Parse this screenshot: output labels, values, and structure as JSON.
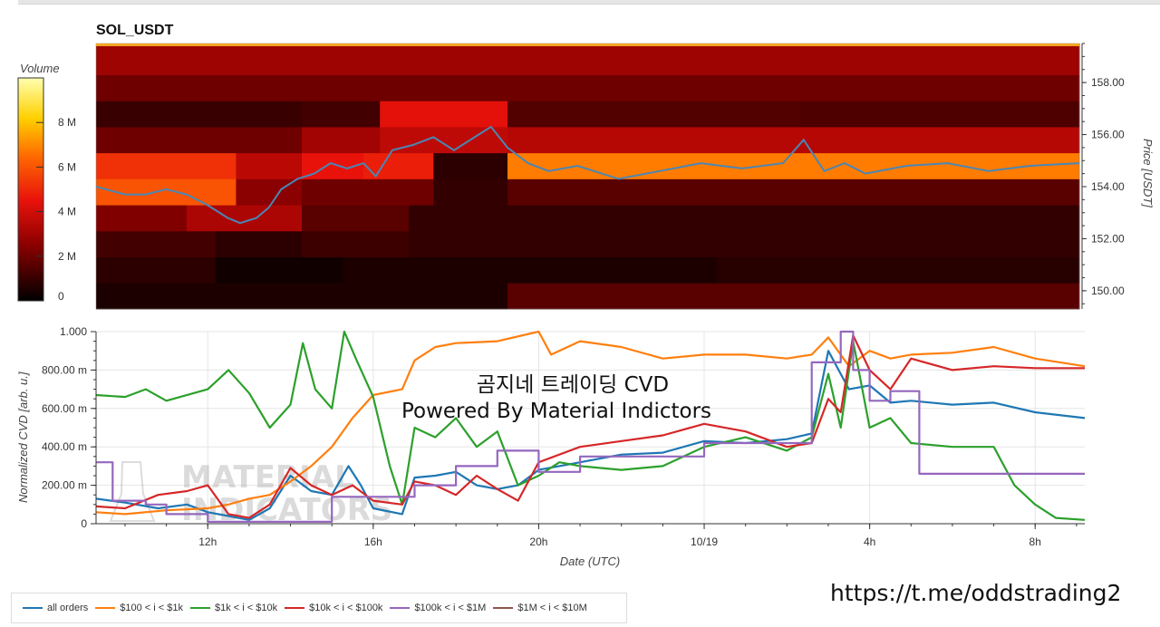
{
  "url": "https://t.me/oddstrading2",
  "chart_data": [
    {
      "type": "heatmap",
      "title": "SOL_USDT",
      "colorbar_label": "Volume",
      "colorbar_range": [
        0,
        10
      ],
      "colorbar_ticks": [
        {
          "value": 0,
          "label": "0"
        },
        {
          "value": 2,
          "label": "2 M"
        },
        {
          "value": 4,
          "label": "4 M"
        },
        {
          "value": 6,
          "label": "6 M"
        },
        {
          "value": 8,
          "label": "8 M"
        }
      ],
      "ylabel": "Price [USDT]",
      "ylim": [
        149.3,
        159.5
      ],
      "y_ticks": [
        {
          "value": 150,
          "label": "150.00"
        },
        {
          "value": 152,
          "label": "152.00"
        },
        {
          "value": 154,
          "label": "154.00"
        },
        {
          "value": 156,
          "label": "156.00"
        },
        {
          "value": 158,
          "label": "158.00"
        }
      ],
      "x_hours_range": [
        9.3,
        33.2
      ],
      "price_bins": [
        {
          "lo": 149.3,
          "hi": 150.3
        },
        {
          "lo": 150.3,
          "hi": 151.3
        },
        {
          "lo": 151.3,
          "hi": 152.3
        },
        {
          "lo": 152.3,
          "hi": 153.3
        },
        {
          "lo": 153.3,
          "hi": 154.3
        },
        {
          "lo": 154.3,
          "hi": 155.3
        },
        {
          "lo": 155.3,
          "hi": 156.3
        },
        {
          "lo": 156.3,
          "hi": 157.3
        },
        {
          "lo": 157.3,
          "hi": 158.3
        },
        {
          "lo": 158.3,
          "hi": 159.5
        }
      ],
      "volume_segments": [
        [
          [
            9.3,
            19.3,
            0.5
          ],
          [
            19.3,
            33.2,
            1.6
          ]
        ],
        [
          [
            9.3,
            12.2,
            0.8
          ],
          [
            12.2,
            15.3,
            0.3
          ],
          [
            15.3,
            24.4,
            0.5
          ],
          [
            24.4,
            33.2,
            0.7
          ]
        ],
        [
          [
            9.3,
            12.2,
            1.2
          ],
          [
            12.2,
            14.3,
            0.8
          ],
          [
            14.3,
            16.9,
            1.1
          ],
          [
            16.9,
            33.2,
            0.9
          ]
        ],
        [
          [
            9.3,
            11.5,
            2.3
          ],
          [
            11.5,
            14.3,
            3.2
          ],
          [
            14.3,
            16.9,
            1.6
          ],
          [
            16.9,
            33.2,
            0.9
          ]
        ],
        [
          [
            9.3,
            12.7,
            6.0
          ],
          [
            12.7,
            14.3,
            2.5
          ],
          [
            14.3,
            17.5,
            2.0
          ],
          [
            17.5,
            19.3,
            0.9
          ],
          [
            19.3,
            33.2,
            1.6
          ]
        ],
        [
          [
            9.3,
            12.7,
            5.2
          ],
          [
            12.7,
            14.3,
            3.5
          ],
          [
            14.3,
            15.8,
            4.5
          ],
          [
            15.8,
            17.5,
            4.8
          ],
          [
            17.5,
            19.3,
            0.8
          ],
          [
            19.3,
            33.2,
            6.8
          ]
        ],
        [
          [
            9.3,
            14.3,
            2.0
          ],
          [
            14.3,
            16.2,
            3.0
          ],
          [
            16.2,
            19.3,
            3.6
          ],
          [
            19.3,
            33.2,
            3.4
          ]
        ],
        [
          [
            9.3,
            14.3,
            1.0
          ],
          [
            14.3,
            16.2,
            1.2
          ],
          [
            16.2,
            19.3,
            4.4
          ],
          [
            19.3,
            26.4,
            1.5
          ],
          [
            26.4,
            33.2,
            1.4
          ]
        ],
        [
          [
            9.3,
            33.2,
            2.0
          ]
        ],
        [
          [
            9.3,
            33.2,
            2.9
          ]
        ]
      ],
      "price_line": {
        "color": "#4a86b4",
        "x_hours": [
          9.3,
          10.0,
          10.5,
          11.0,
          11.5,
          12.0,
          12.5,
          12.8,
          13.2,
          13.5,
          13.8,
          14.2,
          14.6,
          15.0,
          15.4,
          15.8,
          16.1,
          16.5,
          17.0,
          17.5,
          18.0,
          18.5,
          18.9,
          19.3,
          19.8,
          20.3,
          21.0,
          22.0,
          23.0,
          24.0,
          25.0,
          26.0,
          26.5,
          27.0,
          27.5,
          28.0,
          29.0,
          30.0,
          31.0,
          32.0,
          33.2
        ],
        "y": [
          154.0,
          153.7,
          153.7,
          153.9,
          153.7,
          153.3,
          152.8,
          152.6,
          152.8,
          153.2,
          153.9,
          154.3,
          154.5,
          154.9,
          154.7,
          154.9,
          154.4,
          155.4,
          155.6,
          155.9,
          155.4,
          155.9,
          156.3,
          155.5,
          154.9,
          154.6,
          154.8,
          154.3,
          154.6,
          154.9,
          154.7,
          154.9,
          155.8,
          154.6,
          154.9,
          154.5,
          154.8,
          154.9,
          154.6,
          154.8,
          154.9
        ]
      }
    },
    {
      "type": "line",
      "xlabel": "Date (UTC)",
      "ylabel": "Normalized CVD [arb. u.]",
      "ylim": [
        0,
        1.0
      ],
      "y_ticks": [
        {
          "value": 0,
          "label": "0"
        },
        {
          "value": 0.2,
          "label": "200.00 m"
        },
        {
          "value": 0.4,
          "label": "400.00 m"
        },
        {
          "value": 0.6,
          "label": "600.00 m"
        },
        {
          "value": 0.8,
          "label": "800.00 m"
        },
        {
          "value": 1.0,
          "label": "1.000"
        }
      ],
      "x_hours_range": [
        9.3,
        33.2
      ],
      "x_ticks": [
        {
          "value": 12,
          "label": "12h"
        },
        {
          "value": 16,
          "label": "16h"
        },
        {
          "value": 20,
          "label": "20h"
        },
        {
          "value": 24,
          "label": "10/19"
        },
        {
          "value": 28,
          "label": "4h"
        },
        {
          "value": 32,
          "label": "8h"
        }
      ],
      "watermark_lines": [
        "곰지네 트레이딩 CVD",
        "Powered By Material Indictors"
      ],
      "logo_watermark": [
        "MATERIAL",
        "INDICATORS"
      ],
      "series": [
        {
          "name": "all orders",
          "color": "#1f77b4",
          "x_hours": [
            9.3,
            10.0,
            10.8,
            11.5,
            12.0,
            12.5,
            13.0,
            13.5,
            14.0,
            14.5,
            15.0,
            15.4,
            15.7,
            16.0,
            16.7,
            17.0,
            17.5,
            18.0,
            18.5,
            19.0,
            19.5,
            20.0,
            21.0,
            22.0,
            23.0,
            24.0,
            25.0,
            26.0,
            26.6,
            27.0,
            27.5,
            28.0,
            28.5,
            29.0,
            30.0,
            31.0,
            32.0,
            33.2
          ],
          "y": [
            0.13,
            0.11,
            0.08,
            0.1,
            0.06,
            0.04,
            0.02,
            0.08,
            0.25,
            0.17,
            0.15,
            0.3,
            0.2,
            0.08,
            0.05,
            0.24,
            0.25,
            0.27,
            0.2,
            0.18,
            0.2,
            0.28,
            0.32,
            0.36,
            0.37,
            0.43,
            0.42,
            0.44,
            0.47,
            0.9,
            0.7,
            0.72,
            0.63,
            0.64,
            0.62,
            0.63,
            0.58,
            0.55
          ]
        },
        {
          "name": "$100 < i < $1k",
          "color": "#ff7f0e",
          "x_hours": [
            9.3,
            10.0,
            11.0,
            12.0,
            12.5,
            13.0,
            13.5,
            14.0,
            14.5,
            15.0,
            15.5,
            16.0,
            16.7,
            17.0,
            17.5,
            18.0,
            19.0,
            20.0,
            20.3,
            21.0,
            22.0,
            23.0,
            24.0,
            25.0,
            26.0,
            26.6,
            27.0,
            27.5,
            28.0,
            28.5,
            29.0,
            30.0,
            31.0,
            32.0,
            33.2
          ],
          "y": [
            0.06,
            0.05,
            0.07,
            0.08,
            0.1,
            0.13,
            0.15,
            0.22,
            0.3,
            0.4,
            0.55,
            0.67,
            0.7,
            0.85,
            0.92,
            0.94,
            0.95,
            1.0,
            0.88,
            0.95,
            0.92,
            0.86,
            0.88,
            0.88,
            0.86,
            0.88,
            0.97,
            0.82,
            0.9,
            0.86,
            0.88,
            0.89,
            0.92,
            0.86,
            0.82
          ]
        },
        {
          "name": "$1k < i < $10k",
          "color": "#2ca02c",
          "x_hours": [
            9.3,
            10.0,
            10.5,
            11.0,
            12.0,
            12.5,
            13.0,
            13.5,
            14.0,
            14.3,
            14.6,
            15.0,
            15.3,
            15.6,
            16.0,
            16.4,
            16.7,
            17.0,
            17.5,
            18.0,
            18.5,
            19.0,
            19.5,
            20.0,
            20.5,
            21.0,
            22.0,
            23.0,
            24.0,
            25.0,
            26.0,
            26.6,
            27.0,
            27.3,
            27.6,
            28.0,
            28.5,
            29.0,
            30.0,
            31.0,
            31.5,
            32.0,
            32.5,
            33.2
          ],
          "y": [
            0.67,
            0.66,
            0.7,
            0.64,
            0.7,
            0.8,
            0.68,
            0.5,
            0.62,
            0.94,
            0.7,
            0.6,
            1.0,
            0.85,
            0.66,
            0.3,
            0.1,
            0.5,
            0.45,
            0.55,
            0.4,
            0.48,
            0.2,
            0.25,
            0.32,
            0.3,
            0.28,
            0.3,
            0.4,
            0.45,
            0.38,
            0.45,
            0.78,
            0.5,
            0.95,
            0.5,
            0.55,
            0.42,
            0.4,
            0.4,
            0.2,
            0.1,
            0.03,
            0.02
          ]
        },
        {
          "name": "$10k < i < $100k",
          "color": "#d62728",
          "x_hours": [
            9.3,
            10.0,
            10.8,
            11.5,
            12.0,
            12.5,
            13.0,
            13.5,
            14.0,
            14.5,
            15.0,
            15.5,
            16.0,
            16.7,
            17.0,
            17.5,
            18.0,
            18.5,
            19.0,
            19.5,
            20.0,
            21.0,
            22.0,
            23.0,
            24.0,
            25.0,
            26.0,
            26.6,
            27.0,
            27.3,
            27.6,
            28.0,
            28.5,
            29.0,
            30.0,
            31.0,
            32.0,
            33.2
          ],
          "y": [
            0.09,
            0.08,
            0.15,
            0.17,
            0.2,
            0.05,
            0.03,
            0.1,
            0.29,
            0.2,
            0.15,
            0.2,
            0.12,
            0.1,
            0.22,
            0.2,
            0.15,
            0.25,
            0.18,
            0.12,
            0.32,
            0.4,
            0.43,
            0.46,
            0.52,
            0.48,
            0.4,
            0.42,
            0.65,
            0.58,
            0.98,
            0.8,
            0.7,
            0.86,
            0.8,
            0.82,
            0.81,
            0.81
          ]
        },
        {
          "name": "$100k < i < $1M",
          "color": "#9467bd",
          "x_hours": [
            9.3,
            9.7,
            9.7,
            10.5,
            10.5,
            11.0,
            11.0,
            12.0,
            12.0,
            15.0,
            15.0,
            17.0,
            17.0,
            18.0,
            18.0,
            19.0,
            19.0,
            20.0,
            20.0,
            21.0,
            21.0,
            24.0,
            24.0,
            26.6,
            26.6,
            27.3,
            27.3,
            27.6,
            27.6,
            28.0,
            28.0,
            28.5,
            28.5,
            29.2,
            29.2,
            33.2
          ],
          "y": [
            0.32,
            0.32,
            0.12,
            0.12,
            0.1,
            0.1,
            0.05,
            0.05,
            0.01,
            0.01,
            0.14,
            0.14,
            0.2,
            0.2,
            0.3,
            0.3,
            0.38,
            0.38,
            0.27,
            0.27,
            0.35,
            0.35,
            0.42,
            0.42,
            0.84,
            0.84,
            1.0,
            1.0,
            0.8,
            0.8,
            0.64,
            0.64,
            0.69,
            0.69,
            0.26,
            0.26
          ]
        },
        {
          "name": "$1M < i < $10M",
          "color": "#8c564b",
          "x_hours": [],
          "y": []
        }
      ]
    }
  ]
}
